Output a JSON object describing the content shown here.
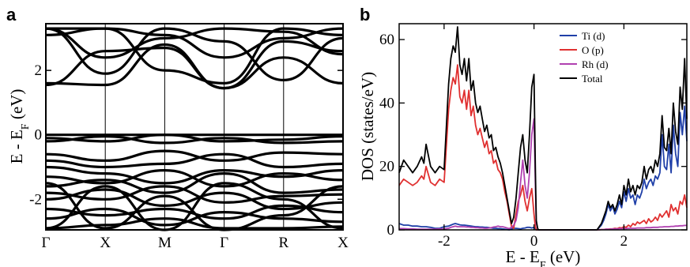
{
  "chart_data": [
    {
      "type": "line",
      "panel_label": "a",
      "title": "",
      "xlabel": "",
      "ylabel": "E - E_F (eV)",
      "ylabel_parts": {
        "main": "E - E",
        "sub": "F",
        "unit": " (eV)"
      },
      "categories": [
        "Γ",
        "X",
        "M",
        "Γ",
        "R",
        "X"
      ],
      "x": [
        0,
        1,
        2,
        3,
        4,
        5
      ],
      "ylim": [
        -2.95,
        3.45
      ],
      "yticks": [
        -2,
        0,
        2
      ],
      "grid": false,
      "band_color": "#000000",
      "series": [
        {
          "values": [
            3.3,
            2.4,
            3.0,
            3.3,
            3.2,
            2.5
          ]
        },
        {
          "values": [
            3.3,
            3.3,
            3.1,
            2.4,
            3.0,
            3.3
          ]
        },
        {
          "values": [
            1.55,
            2.6,
            2.7,
            1.45,
            2.9,
            2.6
          ]
        },
        {
          "values": [
            1.6,
            1.55,
            2.8,
            1.45,
            2.4,
            1.6
          ]
        },
        {
          "values": [
            3.3,
            1.9,
            3.3,
            2.9,
            1.7,
            3.0
          ]
        },
        {
          "values": [
            3.1,
            3.3,
            2.0,
            1.6,
            3.3,
            3.1
          ]
        },
        {
          "values": [
            0.0,
            0.0,
            0.0,
            0.0,
            0.0,
            0.0
          ]
        },
        {
          "values": [
            -0.1,
            -0.2,
            0.0,
            -0.2,
            -0.15,
            -0.05
          ]
        },
        {
          "values": [
            -0.2,
            -0.05,
            -0.25,
            -0.1,
            -0.25,
            -0.2
          ]
        },
        {
          "values": [
            -0.6,
            -0.8,
            -0.5,
            -0.8,
            -0.55,
            -0.6
          ]
        },
        {
          "values": [
            -0.8,
            -1.0,
            -0.9,
            -0.6,
            -1.0,
            -0.9
          ]
        },
        {
          "values": [
            -1.0,
            -1.2,
            -1.5,
            -1.1,
            -1.3,
            -1.1
          ]
        },
        {
          "values": [
            -1.3,
            -1.5,
            -1.1,
            -1.6,
            -1.2,
            -1.4
          ]
        },
        {
          "values": [
            -1.6,
            -1.4,
            -1.8,
            -1.2,
            -1.8,
            -1.7
          ]
        },
        {
          "values": [
            -1.8,
            -2.0,
            -1.6,
            -2.1,
            -1.9,
            -1.85
          ]
        },
        {
          "values": [
            -2.0,
            -1.7,
            -2.2,
            -1.8,
            -2.3,
            -2.1
          ]
        },
        {
          "values": [
            -2.3,
            -2.5,
            -2.3,
            -2.6,
            -2.2,
            -2.4
          ]
        },
        {
          "values": [
            -2.6,
            -2.3,
            -2.8,
            -2.4,
            -2.6,
            -2.7
          ]
        },
        {
          "values": [
            -2.9,
            -2.8,
            -2.6,
            -2.9,
            -2.9,
            -2.85
          ]
        },
        {
          "values": [
            -1.5,
            -2.9,
            -1.9,
            -2.95,
            -2.5,
            -1.6
          ]
        },
        {
          "values": [
            -2.9,
            -1.6,
            -2.95,
            -1.5,
            -2.0,
            -2.9
          ]
        }
      ]
    },
    {
      "type": "line",
      "panel_label": "b",
      "title": "",
      "xlabel": "E - E_F (eV)",
      "xlabel_parts": {
        "main": "E - E",
        "sub": "F",
        "unit": " (eV)"
      },
      "ylabel": "DOS (states/eV)",
      "xlim": [
        -3.0,
        3.4
      ],
      "ylim": [
        0,
        65
      ],
      "xticks": [
        -2,
        0,
        2
      ],
      "yticks": [
        0,
        20,
        40,
        60
      ],
      "grid": false,
      "legend_position": "top-right",
      "x": [
        -3.0,
        -2.9,
        -2.8,
        -2.7,
        -2.6,
        -2.5,
        -2.45,
        -2.4,
        -2.3,
        -2.2,
        -2.1,
        -2.0,
        -1.9,
        -1.85,
        -1.8,
        -1.75,
        -1.7,
        -1.65,
        -1.6,
        -1.55,
        -1.5,
        -1.45,
        -1.4,
        -1.35,
        -1.3,
        -1.25,
        -1.2,
        -1.15,
        -1.1,
        -1.05,
        -1.0,
        -0.95,
        -0.9,
        -0.85,
        -0.8,
        -0.75,
        -0.7,
        -0.65,
        -0.6,
        -0.55,
        -0.5,
        -0.45,
        -0.4,
        -0.35,
        -0.3,
        -0.25,
        -0.2,
        -0.15,
        -0.1,
        -0.05,
        0.0,
        0.03,
        0.05,
        0.08,
        0.1,
        0.2,
        0.6,
        1.0,
        1.4,
        1.5,
        1.55,
        1.6,
        1.65,
        1.7,
        1.75,
        1.8,
        1.85,
        1.9,
        1.95,
        2.0,
        2.05,
        2.1,
        2.15,
        2.2,
        2.25,
        2.3,
        2.35,
        2.4,
        2.45,
        2.5,
        2.55,
        2.6,
        2.65,
        2.7,
        2.75,
        2.8,
        2.85,
        2.9,
        2.95,
        3.0,
        3.05,
        3.1,
        3.15,
        3.2,
        3.25,
        3.3,
        3.35,
        3.4
      ],
      "series": [
        {
          "name": "Ti (d)",
          "color": "#1f3fa8",
          "values": [
            2.0,
            1.5,
            1.5,
            1.2,
            1.2,
            1.0,
            1.0,
            1.0,
            0.8,
            0.5,
            0.5,
            1.0,
            1.2,
            1.5,
            1.8,
            2.0,
            1.8,
            1.6,
            1.5,
            1.5,
            1.4,
            1.3,
            1.2,
            1.1,
            1.0,
            1.0,
            0.9,
            0.9,
            0.8,
            0.8,
            0.7,
            0.6,
            0.5,
            0.5,
            0.4,
            0.4,
            0.3,
            0.2,
            0.1,
            0.0,
            0.3,
            0.5,
            0.5,
            0.4,
            0.3,
            0.5,
            0.6,
            0.8,
            0.8,
            0.6,
            0.8,
            0.4,
            0.0,
            0.0,
            0.0,
            0.0,
            0.0,
            0.0,
            0.0,
            1.5,
            3.0,
            5.0,
            8.0,
            6.0,
            7.5,
            5.0,
            6.5,
            9.0,
            7.0,
            12.0,
            9.0,
            13.0,
            10.0,
            11.0,
            8.0,
            11.0,
            10.0,
            12.0,
            16.0,
            13.0,
            15.0,
            16.0,
            14.0,
            17.0,
            16.0,
            18.0,
            30.0,
            20.0,
            19.0,
            27.0,
            18.0,
            33.0,
            24.0,
            20.0,
            37.0,
            30.0,
            39.0,
            28.0
          ]
        },
        {
          "name": "O (p)",
          "color": "#e03030",
          "values": [
            14.0,
            16.0,
            15.0,
            14.0,
            15.0,
            17.0,
            16.0,
            20.0,
            15.0,
            14.0,
            16.0,
            15.0,
            38.0,
            44.0,
            48.0,
            46.0,
            52.0,
            42.0,
            40.0,
            44.0,
            38.0,
            44.0,
            36.0,
            39.0,
            33.0,
            30.0,
            32.0,
            29.0,
            26.0,
            28.0,
            24.0,
            25.0,
            21.0,
            22.0,
            19.0,
            18.0,
            16.0,
            12.0,
            9.0,
            5.0,
            1.0,
            0.5,
            5.0,
            9.0,
            11.0,
            14.0,
            9.0,
            6.0,
            10.0,
            13.0,
            5.0,
            1.0,
            0.0,
            0.0,
            0.0,
            0.0,
            0.0,
            0.0,
            0.0,
            0.1,
            0.1,
            0.2,
            0.2,
            0.3,
            0.3,
            0.5,
            0.4,
            0.7,
            0.6,
            1.0,
            0.8,
            1.5,
            1.0,
            2.0,
            1.5,
            2.5,
            2.0,
            2.5,
            3.0,
            2.0,
            3.5,
            2.5,
            3.0,
            4.0,
            3.0,
            5.0,
            4.0,
            5.0,
            6.0,
            4.0,
            8.0,
            6.0,
            7.0,
            5.0,
            9.0,
            8.0,
            11.0,
            7.0
          ]
        },
        {
          "name": "Rh (d)",
          "color": "#b040b0",
          "values": [
            0.4,
            0.4,
            0.3,
            0.3,
            0.2,
            0.2,
            0.2,
            0.2,
            0.2,
            0.2,
            0.3,
            0.3,
            0.5,
            0.8,
            1.0,
            1.2,
            1.0,
            1.0,
            1.0,
            1.0,
            0.9,
            0.9,
            0.8,
            0.8,
            0.7,
            0.7,
            0.6,
            0.6,
            0.5,
            0.5,
            0.6,
            0.7,
            0.9,
            1.0,
            1.2,
            1.0,
            1.0,
            0.8,
            0.6,
            0.4,
            0.8,
            1.5,
            3.0,
            7.0,
            15.0,
            22.0,
            14.0,
            10.0,
            18.0,
            30.0,
            35.0,
            15.0,
            2.0,
            0.5,
            0.0,
            0.0,
            0.0,
            0.0,
            0.0,
            0.1,
            0.1,
            0.2,
            0.2,
            0.2,
            0.3,
            0.3,
            0.3,
            0.4,
            0.4,
            0.4,
            0.4,
            0.5,
            0.5,
            0.5,
            0.5,
            0.6,
            0.6,
            0.6,
            0.6,
            0.7,
            0.7,
            0.7,
            0.8,
            0.8,
            0.8,
            0.9,
            0.9,
            1.0,
            1.0,
            1.0,
            1.1,
            1.1,
            1.2,
            1.2,
            1.3,
            1.3,
            1.4,
            1.4
          ]
        },
        {
          "name": "Total",
          "color": "#000000",
          "values": [
            18.0,
            22.0,
            20.0,
            18.0,
            20.0,
            23.0,
            21.0,
            27.0,
            20.0,
            18.0,
            20.0,
            19.0,
            46.0,
            54.0,
            58.0,
            56.0,
            64.0,
            52.0,
            49.0,
            54.0,
            47.0,
            54.0,
            44.0,
            47.0,
            40.0,
            37.0,
            39.0,
            35.0,
            31.0,
            33.0,
            29.0,
            30.0,
            25.0,
            26.0,
            23.0,
            21.0,
            18.0,
            14.0,
            10.0,
            6.0,
            2.0,
            4.0,
            10.0,
            18.0,
            26.0,
            30.0,
            22.0,
            18.0,
            30.0,
            45.0,
            49.0,
            20.0,
            3.0,
            0.5,
            0.0,
            0.0,
            0.0,
            0.0,
            0.0,
            2.0,
            4.0,
            6.0,
            9.0,
            7.0,
            8.0,
            6.0,
            8.0,
            11.0,
            8.0,
            14.0,
            11.0,
            16.0,
            12.0,
            14.0,
            11.0,
            14.0,
            13.0,
            15.0,
            20.0,
            16.0,
            19.0,
            20.0,
            18.0,
            22.0,
            20.0,
            24.0,
            36.0,
            26.0,
            25.0,
            32.0,
            24.0,
            40.0,
            31.0,
            27.0,
            45.0,
            38.0,
            54.0,
            35.0
          ]
        }
      ]
    }
  ]
}
